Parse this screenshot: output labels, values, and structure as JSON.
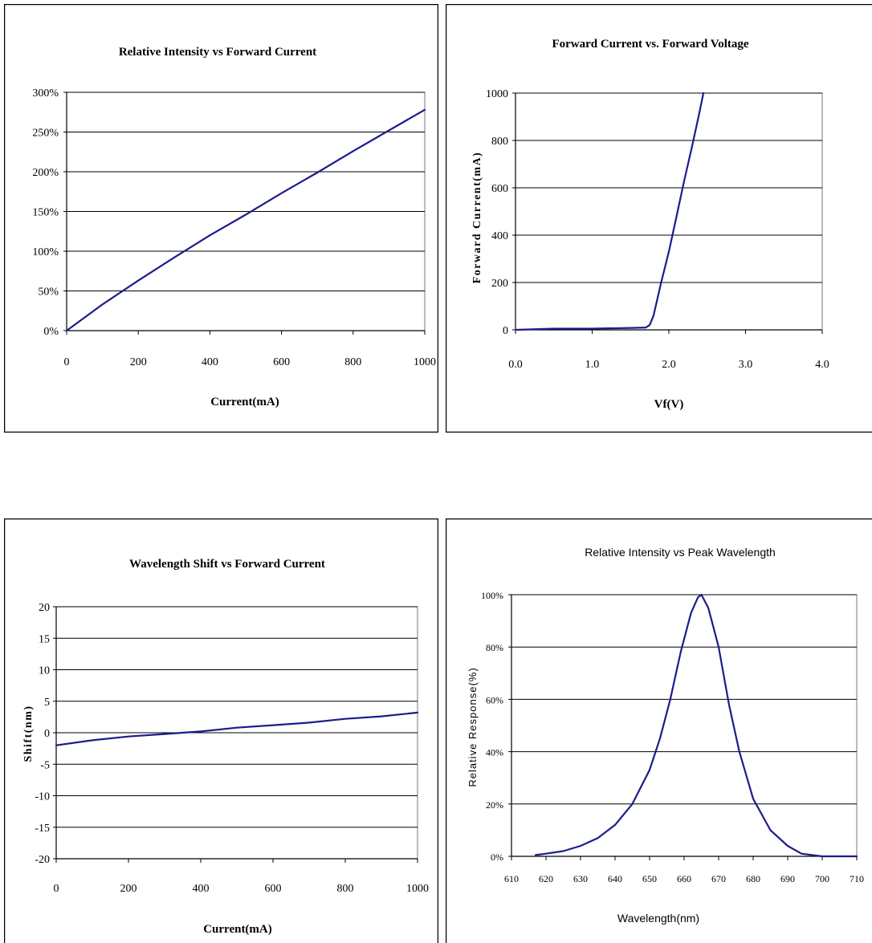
{
  "colors": {
    "line": "#1c1c8c",
    "grid": "#000000",
    "frame": "#000000",
    "background": "#ffffff"
  },
  "chart_data": [
    {
      "id": "p1",
      "type": "line",
      "title": "Relative Intensity vs Forward Current",
      "xlabel": "Current(mA)",
      "ylabel": "",
      "xlim": [
        0,
        1000
      ],
      "ylim": [
        0,
        300
      ],
      "xticks": [
        0,
        200,
        400,
        600,
        800,
        1000
      ],
      "xtick_labels": [
        "0",
        "200",
        "400",
        "600",
        "800",
        "1000"
      ],
      "yticks": [
        0,
        50,
        100,
        150,
        200,
        250,
        300
      ],
      "ytick_labels": [
        "0%",
        "50%",
        "100%",
        "150%",
        "200%",
        "250%",
        "300%"
      ],
      "grid": "horizontal",
      "legend": "none",
      "series": [
        {
          "x": [
            0,
            100,
            200,
            300,
            400,
            500,
            600,
            700,
            800,
            900,
            1000
          ],
          "y": [
            0,
            33,
            63,
            92,
            120,
            146,
            173,
            199,
            226,
            252,
            278
          ]
        }
      ]
    },
    {
      "id": "p2",
      "type": "line",
      "title": "Forward Current vs. Forward Voltage",
      "xlabel": "Vf(V)",
      "ylabel": "Forward Current(mA)",
      "xlim": [
        0,
        4
      ],
      "ylim": [
        0,
        1000
      ],
      "xticks": [
        0,
        1,
        2,
        3,
        4
      ],
      "xtick_labels": [
        "0.0",
        "1.0",
        "2.0",
        "3.0",
        "4.0"
      ],
      "yticks": [
        0,
        200,
        400,
        600,
        800,
        1000
      ],
      "ytick_labels": [
        "0",
        "200",
        "400",
        "600",
        "800",
        "1000"
      ],
      "grid": "horizontal",
      "legend": "none",
      "series": [
        {
          "x": [
            0,
            0.5,
            1.0,
            1.5,
            1.7,
            1.75,
            1.8,
            1.9,
            2.0,
            2.1,
            2.2,
            2.3,
            2.4,
            2.45
          ],
          "y": [
            0,
            5,
            5,
            8,
            10,
            20,
            60,
            200,
            330,
            480,
            630,
            770,
            920,
            1000
          ]
        }
      ]
    },
    {
      "id": "p3",
      "type": "line",
      "title": "Wavelength Shift vs Forward Current",
      "xlabel": "Current(mA)",
      "ylabel": "Shift(nm)",
      "xlim": [
        0,
        1000
      ],
      "ylim": [
        -20,
        20
      ],
      "xticks": [
        0,
        200,
        400,
        600,
        800,
        1000
      ],
      "xtick_labels": [
        "0",
        "200",
        "400",
        "600",
        "800",
        "1000"
      ],
      "yticks": [
        -20,
        -15,
        -10,
        -5,
        0,
        5,
        10,
        15,
        20
      ],
      "ytick_labels": [
        "-20",
        "-15",
        "-10",
        "-5",
        "0",
        "5",
        "10",
        "15",
        "20"
      ],
      "grid": "horizontal",
      "legend": "none",
      "series": [
        {
          "x": [
            0,
            100,
            200,
            300,
            400,
            500,
            600,
            700,
            800,
            900,
            1000
          ],
          "y": [
            -2.0,
            -1.2,
            -0.6,
            -0.2,
            0.2,
            0.8,
            1.2,
            1.6,
            2.2,
            2.6,
            3.2
          ]
        }
      ]
    },
    {
      "id": "p4",
      "type": "line",
      "title": "Relative Intensity vs Peak Wavelength",
      "xlabel": "Wavelength(nm)",
      "ylabel": "Relative Response(%)",
      "xlim": [
        610,
        710
      ],
      "ylim": [
        0,
        100
      ],
      "xticks": [
        610,
        620,
        630,
        640,
        650,
        660,
        670,
        680,
        690,
        700,
        710
      ],
      "xtick_labels": [
        "610",
        "620",
        "630",
        "640",
        "650",
        "660",
        "670",
        "680",
        "690",
        "700",
        "710"
      ],
      "yticks": [
        0,
        20,
        40,
        60,
        80,
        100
      ],
      "ytick_labels": [
        "0%",
        "20%",
        "40%",
        "60%",
        "80%",
        "100%"
      ],
      "grid": "horizontal",
      "legend": "none",
      "series": [
        {
          "x": [
            617,
            620,
            625,
            630,
            635,
            640,
            645,
            650,
            653,
            656,
            659,
            662,
            664,
            665,
            667,
            670,
            673,
            676,
            680,
            685,
            690,
            694,
            700,
            710
          ],
          "y": [
            0.5,
            1,
            2,
            4,
            7,
            12,
            20,
            33,
            45,
            60,
            78,
            93,
            99,
            100,
            95,
            80,
            58,
            40,
            22,
            10,
            4,
            1,
            0,
            0
          ]
        }
      ]
    }
  ]
}
